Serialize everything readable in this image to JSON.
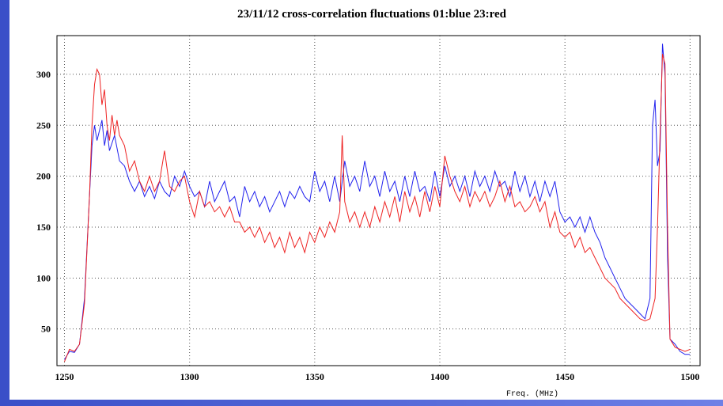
{
  "chart_data": {
    "type": "line",
    "title": "23/11/12 cross-correlation fluctuations 01:blue 23:red",
    "x_label": "Freq. (MHz)",
    "xlim": [
      1247,
      1504
    ],
    "xticks": [
      1250,
      1300,
      1350,
      1400,
      1450,
      1500
    ],
    "ylim": [
      14,
      338
    ],
    "yticks": [
      50,
      100,
      150,
      200,
      250,
      300
    ],
    "grid": true,
    "series": [
      {
        "color": "#2222ee",
        "x": [
          1250,
          1252,
          1254,
          1256,
          1258,
          1260,
          1261,
          1262,
          1263,
          1264,
          1265,
          1266,
          1267,
          1268,
          1270,
          1272,
          1274,
          1276,
          1278,
          1280,
          1282,
          1284,
          1286,
          1288,
          1290,
          1292,
          1294,
          1296,
          1298,
          1300,
          1302,
          1304,
          1306,
          1308,
          1310,
          1312,
          1314,
          1316,
          1318,
          1320,
          1322,
          1324,
          1326,
          1328,
          1330,
          1332,
          1334,
          1336,
          1338,
          1340,
          1342,
          1344,
          1346,
          1348,
          1350,
          1352,
          1354,
          1356,
          1358,
          1360,
          1362,
          1364,
          1366,
          1368,
          1370,
          1372,
          1374,
          1376,
          1378,
          1380,
          1382,
          1384,
          1386,
          1388,
          1390,
          1392,
          1394,
          1396,
          1398,
          1400,
          1402,
          1404,
          1406,
          1408,
          1410,
          1412,
          1414,
          1416,
          1418,
          1420,
          1422,
          1424,
          1426,
          1428,
          1430,
          1432,
          1434,
          1436,
          1438,
          1440,
          1442,
          1444,
          1446,
          1448,
          1450,
          1452,
          1454,
          1456,
          1458,
          1460,
          1462,
          1464,
          1466,
          1468,
          1470,
          1472,
          1474,
          1476,
          1478,
          1480,
          1482,
          1484,
          1485,
          1486,
          1487,
          1488,
          1489,
          1490,
          1491,
          1492,
          1494,
          1496,
          1498,
          1500
        ],
        "values": [
          20,
          28,
          27,
          35,
          80,
          180,
          230,
          250,
          235,
          245,
          255,
          230,
          245,
          225,
          240,
          215,
          210,
          195,
          185,
          195,
          180,
          190,
          178,
          195,
          185,
          180,
          200,
          190,
          205,
          190,
          180,
          185,
          170,
          195,
          175,
          185,
          195,
          175,
          180,
          160,
          190,
          175,
          185,
          170,
          180,
          165,
          175,
          185,
          170,
          185,
          178,
          190,
          180,
          175,
          205,
          185,
          195,
          175,
          200,
          175,
          215,
          190,
          200,
          185,
          215,
          190,
          200,
          180,
          205,
          185,
          195,
          175,
          200,
          180,
          205,
          185,
          190,
          175,
          205,
          180,
          210,
          190,
          200,
          185,
          200,
          180,
          205,
          190,
          200,
          185,
          205,
          190,
          195,
          180,
          205,
          185,
          200,
          180,
          195,
          175,
          195,
          180,
          195,
          165,
          155,
          160,
          150,
          160,
          145,
          160,
          145,
          135,
          120,
          110,
          100,
          90,
          80,
          75,
          70,
          65,
          60,
          80,
          250,
          275,
          210,
          225,
          330,
          300,
          120,
          40,
          35,
          28,
          25,
          25
        ]
      },
      {
        "color": "#ee2222",
        "x": [
          1250,
          1252,
          1254,
          1256,
          1258,
          1260,
          1261,
          1262,
          1263,
          1264,
          1265,
          1266,
          1267,
          1268,
          1269,
          1270,
          1271,
          1272,
          1274,
          1276,
          1278,
          1280,
          1282,
          1284,
          1286,
          1288,
          1290,
          1292,
          1294,
          1296,
          1298,
          1300,
          1302,
          1304,
          1306,
          1308,
          1310,
          1312,
          1314,
          1316,
          1318,
          1320,
          1322,
          1324,
          1326,
          1328,
          1330,
          1332,
          1334,
          1336,
          1338,
          1340,
          1342,
          1344,
          1346,
          1348,
          1350,
          1352,
          1354,
          1356,
          1358,
          1360,
          1361,
          1362,
          1364,
          1366,
          1368,
          1370,
          1372,
          1374,
          1376,
          1378,
          1380,
          1382,
          1384,
          1386,
          1388,
          1390,
          1392,
          1394,
          1396,
          1398,
          1400,
          1402,
          1404,
          1406,
          1408,
          1410,
          1412,
          1414,
          1416,
          1418,
          1420,
          1422,
          1424,
          1426,
          1428,
          1430,
          1432,
          1434,
          1436,
          1438,
          1440,
          1442,
          1444,
          1446,
          1448,
          1450,
          1452,
          1454,
          1456,
          1458,
          1460,
          1462,
          1464,
          1466,
          1468,
          1470,
          1472,
          1474,
          1476,
          1478,
          1480,
          1482,
          1484,
          1486,
          1487,
          1488,
          1489,
          1490,
          1491,
          1492,
          1494,
          1496,
          1498,
          1500
        ],
        "values": [
          18,
          30,
          28,
          35,
          75,
          180,
          250,
          290,
          305,
          300,
          270,
          285,
          250,
          235,
          260,
          240,
          255,
          240,
          230,
          205,
          215,
          195,
          185,
          200,
          185,
          195,
          225,
          190,
          185,
          195,
          200,
          175,
          160,
          185,
          170,
          175,
          165,
          170,
          160,
          170,
          155,
          155,
          145,
          150,
          140,
          150,
          135,
          145,
          130,
          140,
          125,
          145,
          130,
          140,
          125,
          145,
          135,
          150,
          140,
          155,
          145,
          165,
          240,
          175,
          155,
          165,
          150,
          165,
          150,
          170,
          155,
          175,
          160,
          180,
          155,
          185,
          165,
          180,
          160,
          185,
          165,
          190,
          170,
          220,
          200,
          185,
          175,
          190,
          170,
          185,
          175,
          185,
          170,
          180,
          195,
          175,
          190,
          170,
          175,
          165,
          170,
          180,
          165,
          175,
          150,
          165,
          145,
          140,
          145,
          130,
          140,
          125,
          130,
          120,
          110,
          100,
          95,
          90,
          80,
          75,
          70,
          65,
          60,
          58,
          60,
          80,
          150,
          240,
          320,
          310,
          150,
          40,
          32,
          30,
          28,
          30
        ]
      }
    ]
  }
}
